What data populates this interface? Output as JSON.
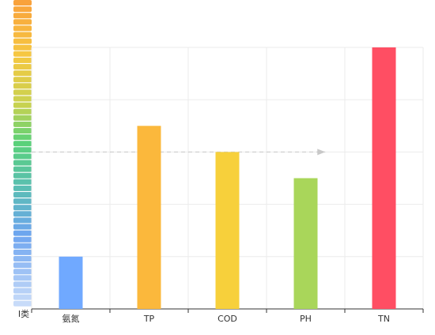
{
  "chart_data": {
    "type": "bar",
    "categories": [
      "氨氮",
      "TP",
      "COD",
      "PH",
      "TN"
    ],
    "values": [
      1,
      3.5,
      3,
      2.5,
      5
    ],
    "colors": [
      "#70a9ff",
      "#fbb83c",
      "#f7d03b",
      "#a9d65a",
      "#ff4e63"
    ],
    "ylim": [
      0,
      5
    ],
    "yticks": [
      0,
      1,
      2,
      3,
      4,
      5
    ],
    "ylabel": "Ⅰ类",
    "grid": true,
    "reference_line": 3
  }
}
